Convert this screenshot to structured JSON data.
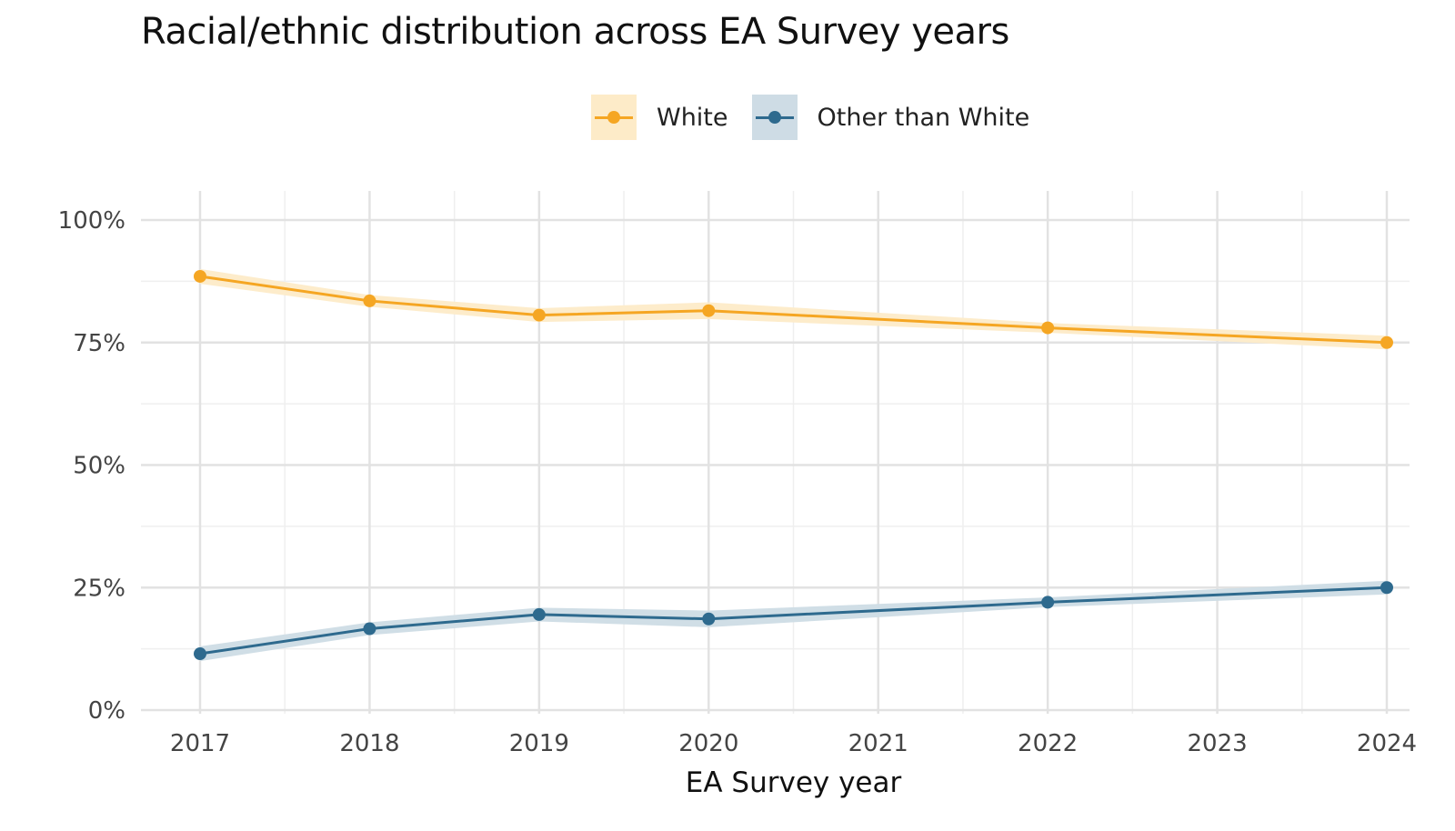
{
  "chart_data": {
    "type": "line",
    "title": "Racial/ethnic distribution across EA Survey years",
    "xlabel": "EA Survey year",
    "ylabel": "",
    "x_ticks": [
      "2017",
      "2018",
      "2019",
      "2020",
      "2021",
      "2022",
      "2023",
      "2024"
    ],
    "y_ticks": [
      "0%",
      "25%",
      "50%",
      "75%",
      "100%"
    ],
    "ylim": [
      0,
      100
    ],
    "xlim": [
      2017,
      2024
    ],
    "legend_position": "top",
    "grid": true,
    "series": [
      {
        "name": "White",
        "color": "#F5A623",
        "band_color": "#FDEBC8",
        "points": [
          {
            "x": 2017,
            "y": 88.5,
            "lo": 87.0,
            "hi": 90.0
          },
          {
            "x": 2018,
            "y": 83.5,
            "lo": 82.3,
            "hi": 84.7
          },
          {
            "x": 2019,
            "y": 80.6,
            "lo": 79.2,
            "hi": 82.0
          },
          {
            "x": 2020,
            "y": 81.5,
            "lo": 79.8,
            "hi": 83.2
          },
          {
            "x": 2022,
            "y": 78.0,
            "lo": 77.0,
            "hi": 79.0
          },
          {
            "x": 2024,
            "y": 75.0,
            "lo": 73.6,
            "hi": 76.4
          }
        ]
      },
      {
        "name": "Other than White",
        "color": "#2E6A8E",
        "band_color": "#CEDCE5",
        "points": [
          {
            "x": 2017,
            "y": 11.5,
            "lo": 10.0,
            "hi": 13.0
          },
          {
            "x": 2018,
            "y": 16.6,
            "lo": 15.3,
            "hi": 17.9
          },
          {
            "x": 2019,
            "y": 19.5,
            "lo": 18.1,
            "hi": 20.9
          },
          {
            "x": 2020,
            "y": 18.6,
            "lo": 16.9,
            "hi": 20.3
          },
          {
            "x": 2022,
            "y": 22.0,
            "lo": 21.0,
            "hi": 23.0
          },
          {
            "x": 2024,
            "y": 25.0,
            "lo": 23.6,
            "hi": 26.4
          }
        ]
      }
    ]
  }
}
